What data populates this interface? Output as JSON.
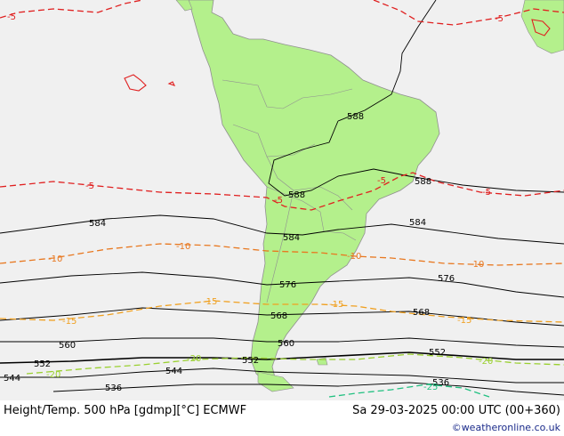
{
  "map": {
    "background_color": "#f0f0f0",
    "land_color": "#b4f08c",
    "border_color": "#909090",
    "height_labels": {
      "h588_a": "588",
      "h588_b": "588",
      "h588_c": "588",
      "h584_a": "584",
      "h584_b": "584",
      "h584_c": "584",
      "h576_a": "576",
      "h576_b": "576",
      "h568_a": "568",
      "h568_b": "568",
      "h560_a": "560",
      "h560_b": "560",
      "h552_a": "552",
      "h552_b": "552",
      "h552_c": "552",
      "h544_a": "544",
      "h544_b": "544",
      "h536_a": "536",
      "h536_b": "536"
    },
    "temp_labels": {
      "t5_a": "-5",
      "t5_b": "-5",
      "t5_c": "-5",
      "t5_d": "-5",
      "t5_e": "-5",
      "t5_f": "-5",
      "t10_a": "-10",
      "t10_b": "-10",
      "t10_c": "-10",
      "t10_d": "-10",
      "t15_a": "-15",
      "t15_b": "-15",
      "t15_c": "-15",
      "t15_d": "-15",
      "t20_a": "-20",
      "t20_b": "-20",
      "t20_c": "-20",
      "t25_a": "-25"
    },
    "colors": {
      "height_line": "#000000",
      "t_minus5": "#e02020",
      "t_minus10": "#e87820",
      "t_minus15": "#f0a020",
      "t_minus20": "#9ad030",
      "t_minus25": "#20c080"
    }
  },
  "footer": {
    "title": "Height/Temp. 500 hPa [gdmp][°C] ECMWF",
    "valid_time": "Sa 29-03-2025 00:00 UTC (00+360)",
    "credit": "©weatheronline.co.uk"
  }
}
